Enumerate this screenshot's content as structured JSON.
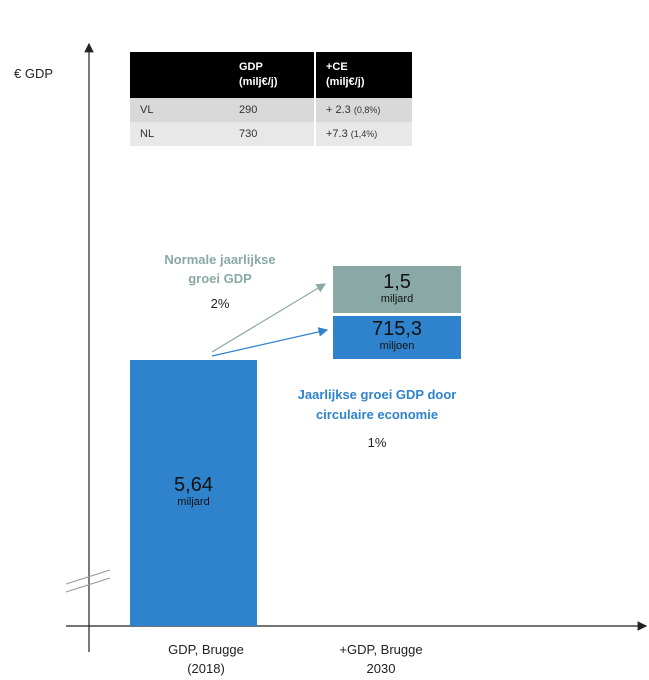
{
  "chart_data": {
    "type": "bar",
    "ylabel": "€ GDP",
    "categories": [
      "GDP, Brugge (2018)",
      "+GDP, Brugge 2030"
    ],
    "category_lines": [
      [
        "GDP, Brugge",
        "(2018)"
      ],
      [
        "+GDP, Brugge",
        "2030"
      ]
    ],
    "bars": [
      {
        "label": "5,64",
        "unit": "miljard",
        "color": "#2e83cc"
      }
    ],
    "stack": [
      {
        "label": "1,5",
        "unit": "miljard",
        "color": "#8aa9a6"
      },
      {
        "label": "715,3",
        "unit": "miljoen",
        "color": "#2e83cc"
      }
    ],
    "annotations": {
      "normal_growth": {
        "lines": [
          "Normale jaarlijkse",
          "groei GDP"
        ],
        "pct": "2%",
        "color": "#8aa9a6"
      },
      "circular_growth": {
        "lines": [
          "Jaarlijkse groei GDP door",
          "circulaire economie"
        ],
        "pct": "1%",
        "color": "#2e83cc"
      }
    },
    "table": {
      "headers": [
        "",
        "GDP (milj€/j)",
        "+CE (milj€/j)"
      ],
      "header_lines": [
        [
          ""
        ],
        [
          "GDP",
          "(milj€/j)"
        ],
        [
          "+CE",
          "(milj€/j)"
        ]
      ],
      "rows": [
        {
          "region": "VL",
          "gdp": "290",
          "ce": "+ 2.3",
          "ce_pct": "(0,8%)"
        },
        {
          "region": "NL",
          "gdp": "730",
          "ce": "+7.3",
          "ce_pct": "(1,4%)"
        }
      ]
    }
  }
}
